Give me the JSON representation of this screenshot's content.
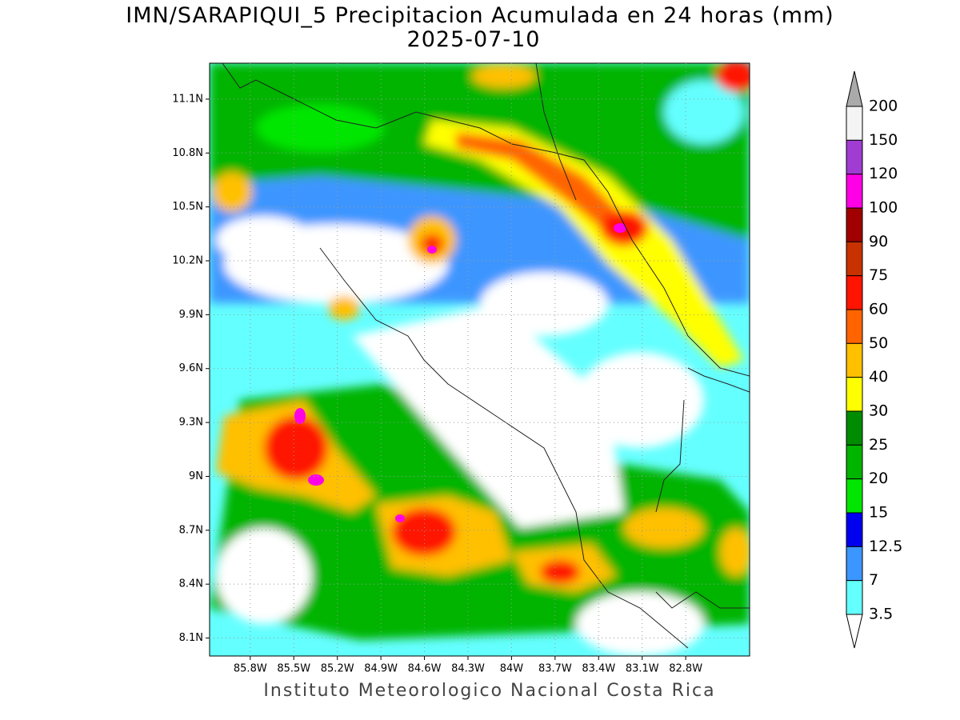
{
  "map": {
    "title": "IMN/SARAPIQUI_5 Precipitacion Acumulada en 24 horas (mm)",
    "subtitle": "2025-07-10",
    "footer": "Instituto Meteorologico Nacional Costa Rica",
    "lonlim": [
      -86.08,
      -82.36
    ],
    "latlim": [
      8.0,
      11.3
    ],
    "lon_ticks": [
      {
        "value": -85.8,
        "label": "85.8W"
      },
      {
        "value": -85.5,
        "label": "85.5W"
      },
      {
        "value": -85.2,
        "label": "85.2W"
      },
      {
        "value": -84.9,
        "label": "84.9W"
      },
      {
        "value": -84.6,
        "label": "84.6W"
      },
      {
        "value": -84.3,
        "label": "84.3W"
      },
      {
        "value": -84.0,
        "label": "84W"
      },
      {
        "value": -83.7,
        "label": "83.7W"
      },
      {
        "value": -83.4,
        "label": "83.4W"
      },
      {
        "value": -83.1,
        "label": "83.1W"
      },
      {
        "value": -82.8,
        "label": "82.8W"
      }
    ],
    "lat_ticks": [
      {
        "value": 11.1,
        "label": "11.1N"
      },
      {
        "value": 10.8,
        "label": "10.8N"
      },
      {
        "value": 10.5,
        "label": "10.5N"
      },
      {
        "value": 10.2,
        "label": "10.2N"
      },
      {
        "value": 9.9,
        "label": "9.9N"
      },
      {
        "value": 9.6,
        "label": "9.6N"
      },
      {
        "value": 9.3,
        "label": "9.3N"
      },
      {
        "value": 9.0,
        "label": "9N"
      },
      {
        "value": 8.7,
        "label": "8.7N"
      },
      {
        "value": 8.4,
        "label": "8.4N"
      },
      {
        "value": 8.1,
        "label": "8.1N"
      }
    ],
    "grid": true,
    "colorbar": {
      "labels": [
        200,
        150,
        120,
        100,
        90,
        75,
        60,
        50,
        40,
        30,
        25,
        20,
        15,
        12.5,
        7,
        3.5
      ],
      "colors": [
        "#f4f4f4",
        "#a03cd2",
        "#ff00e6",
        "#a00000",
        "#c83200",
        "#ff1400",
        "#ff6400",
        "#ffc000",
        "#ffff00",
        "#008c00",
        "#00b400",
        "#00e600",
        "#0000f0",
        "#3c96ff",
        "#64ffff"
      ],
      "over_color": "#aaaaaa",
      "under_color": "#ffffff"
    }
  }
}
